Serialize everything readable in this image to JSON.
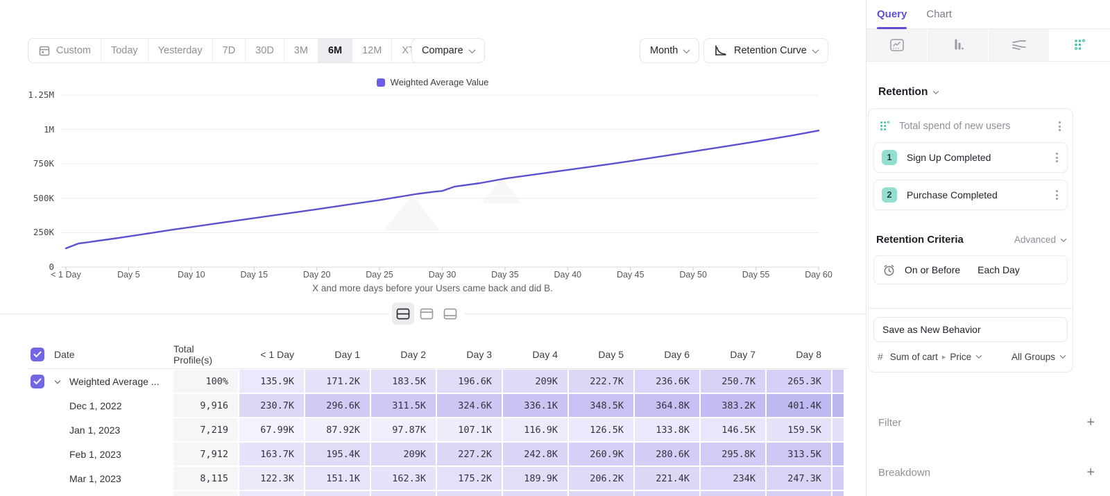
{
  "toolbar": {
    "date_ranges": [
      "Custom",
      "Today",
      "Yesterday",
      "7D",
      "30D",
      "3M",
      "6M",
      "12M",
      "XTD"
    ],
    "selected_range": "6M",
    "compare_label": "Compare",
    "granularity_label": "Month",
    "chart_type_label": "Retention Curve"
  },
  "chart_data": {
    "type": "line",
    "legend": [
      "Weighted Average Value"
    ],
    "series_color": "#5b51cf",
    "legend_swatch_color": "#6c5ce7",
    "y_ticks": [
      "1.25M",
      "1M",
      "750K",
      "500K",
      "250K",
      "0"
    ],
    "ylim": [
      0,
      1250000
    ],
    "x_ticks": [
      {
        "day": 0,
        "label": "< 1 Day"
      },
      {
        "day": 5,
        "label": "Day 5"
      },
      {
        "day": 10,
        "label": "Day 10"
      },
      {
        "day": 15,
        "label": "Day 15"
      },
      {
        "day": 20,
        "label": "Day 20"
      },
      {
        "day": 25,
        "label": "Day 25"
      },
      {
        "day": 30,
        "label": "Day 30"
      },
      {
        "day": 35,
        "label": "Day 35"
      },
      {
        "day": 40,
        "label": "Day 40"
      },
      {
        "day": 45,
        "label": "Day 45"
      },
      {
        "day": 50,
        "label": "Day 50"
      },
      {
        "day": 55,
        "label": "Day 55"
      },
      {
        "day": 60,
        "label": "Day 60"
      }
    ],
    "series": [
      {
        "name": "Weighted Average Value",
        "points": [
          [
            0,
            136000
          ],
          [
            1,
            171200
          ],
          [
            2,
            183500
          ],
          [
            3,
            196600
          ],
          [
            4,
            209000
          ],
          [
            5,
            222700
          ],
          [
            6,
            236600
          ],
          [
            7,
            250700
          ],
          [
            8,
            265300
          ],
          [
            9,
            278000
          ],
          [
            10,
            291000
          ],
          [
            12,
            317000
          ],
          [
            15,
            356000
          ],
          [
            18,
            394000
          ],
          [
            20,
            420000
          ],
          [
            22,
            447000
          ],
          [
            25,
            487000
          ],
          [
            28,
            532000
          ],
          [
            29.5,
            549000
          ],
          [
            30,
            553000
          ],
          [
            31,
            585000
          ],
          [
            33,
            610000
          ],
          [
            35,
            643000
          ],
          [
            38,
            681000
          ],
          [
            40,
            706000
          ],
          [
            43,
            744000
          ],
          [
            45,
            770000
          ],
          [
            48,
            812000
          ],
          [
            50,
            840000
          ],
          [
            53,
            883000
          ],
          [
            55,
            912000
          ],
          [
            58,
            958000
          ],
          [
            60,
            992000
          ]
        ]
      }
    ],
    "caption": "X and more days before your Users came back and did B."
  },
  "table": {
    "headers": [
      "Date",
      "Total Profile(s)",
      "< 1 Day",
      "Day 1",
      "Day 2",
      "Day 3",
      "Day 4",
      "Day 5",
      "Day 6",
      "Day 7",
      "Day 8"
    ],
    "heat_base_rgb": "103,89,222",
    "rows": [
      {
        "label": "Weighted Average ...",
        "summary": true,
        "total": "100%",
        "values": [
          "135.9K",
          "171.2K",
          "183.5K",
          "196.6K",
          "209K",
          "222.7K",
          "236.6K",
          "250.7K",
          "265.3K"
        ]
      },
      {
        "label": "Dec 1, 2022",
        "summary": false,
        "total": "9,916",
        "values": [
          "230.7K",
          "296.6K",
          "311.5K",
          "324.6K",
          "336.1K",
          "348.5K",
          "364.8K",
          "383.2K",
          "401.4K"
        ]
      },
      {
        "label": "Jan 1, 2023",
        "summary": false,
        "total": "7,219",
        "values": [
          "67.99K",
          "87.92K",
          "97.87K",
          "107.1K",
          "116.9K",
          "126.5K",
          "133.8K",
          "146.5K",
          "159.5K"
        ]
      },
      {
        "label": "Feb 1, 2023",
        "summary": false,
        "total": "7,912",
        "values": [
          "163.7K",
          "195.4K",
          "209K",
          "227.2K",
          "242.8K",
          "260.9K",
          "280.6K",
          "295.8K",
          "313.5K"
        ]
      },
      {
        "label": "Mar 1, 2023",
        "summary": false,
        "total": "8,115",
        "values": [
          "122.3K",
          "151.1K",
          "162.3K",
          "175.2K",
          "189.9K",
          "206.2K",
          "221.4K",
          "234K",
          "247.3K"
        ]
      }
    ]
  },
  "panel": {
    "tabs": [
      "Query",
      "Chart"
    ],
    "active_tab": "Query",
    "accent_color": "#5f4fd8",
    "teal_color": "#3fc3a8",
    "section_label": "Retention",
    "behavior": {
      "name": "Total spend of new users",
      "steps": [
        {
          "num": "1",
          "label": "Sign Up Completed"
        },
        {
          "num": "2",
          "label": "Purchase Completed"
        }
      ]
    },
    "criteria": {
      "title": "Retention Criteria",
      "mode": "Advanced",
      "condition": "On or Before",
      "window": "Each Day"
    },
    "save_button_label": "Save as New Behavior",
    "measure": {
      "hash": "#",
      "label": "Sum of cart",
      "arrow": "▸",
      "property": "Price",
      "groups": "All Groups"
    },
    "filter_label": "Filter",
    "breakdown_label": "Breakdown"
  }
}
